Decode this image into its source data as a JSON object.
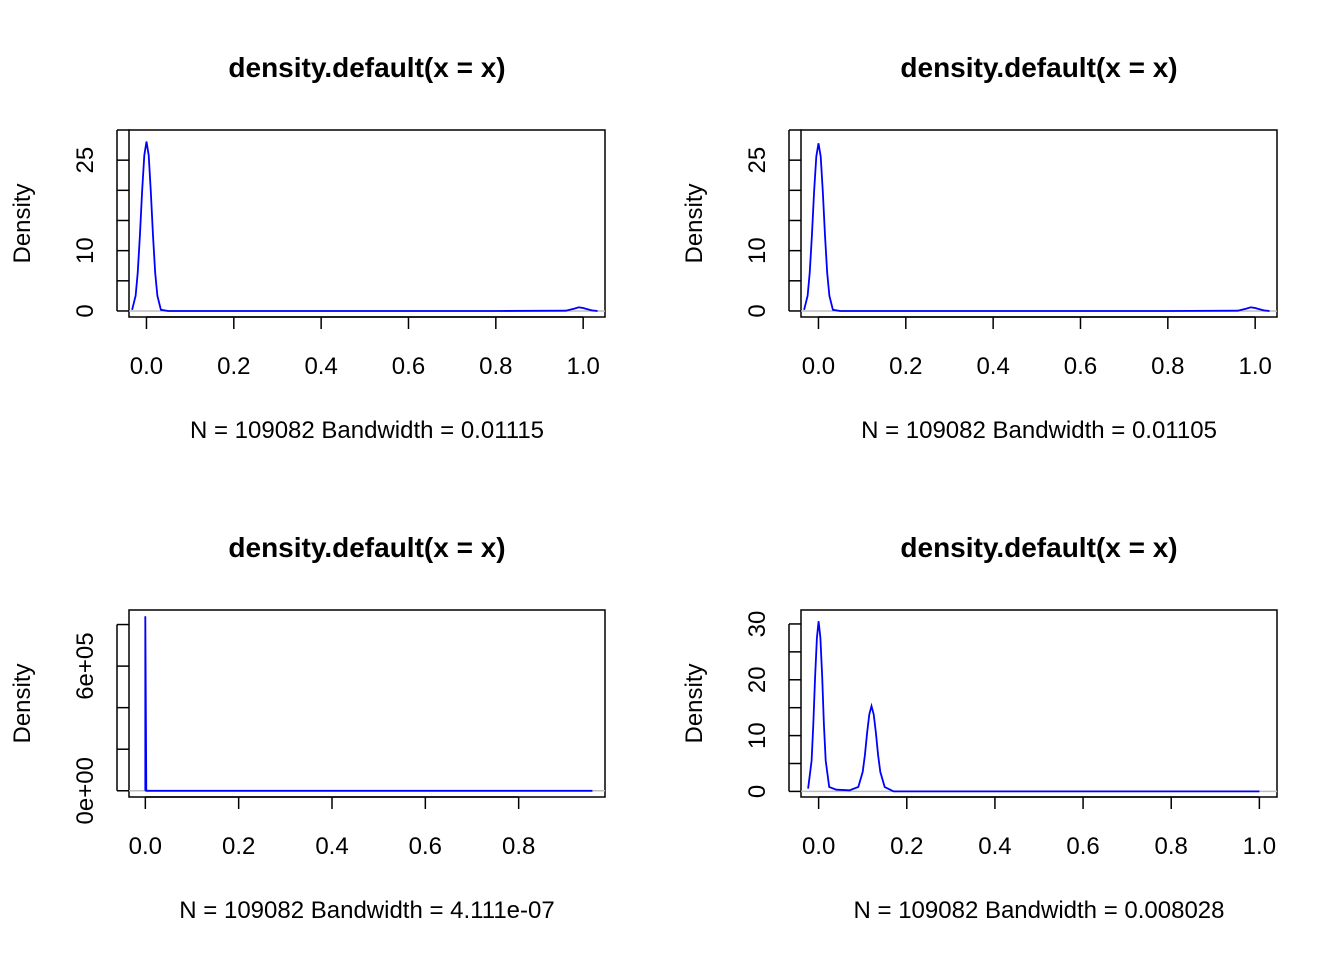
{
  "colors": {
    "curve": "#0000ff",
    "baseline": "#bebebe"
  },
  "chart_data": [
    {
      "type": "line",
      "title": "density.default(x = x)",
      "xlabel": "N = 109082   Bandwidth = 0.01115",
      "ylabel": "Density",
      "xlim": [
        -0.04,
        1.05
      ],
      "ylim": [
        -1.0,
        30.0
      ],
      "xticks": [
        0.0,
        0.2,
        0.4,
        0.6,
        0.8,
        1.0
      ],
      "xtick_labels": [
        "0.0",
        "0.2",
        "0.4",
        "0.6",
        "0.8",
        "1.0"
      ],
      "yticks": [
        0,
        5,
        10,
        15,
        20,
        25,
        30
      ],
      "ytick_labels": [
        "0",
        "",
        "10",
        "",
        "",
        "25",
        ""
      ],
      "series": [
        {
          "x": [
            -0.033,
            -0.025,
            -0.02,
            -0.015,
            -0.01,
            -0.005,
            0.0,
            0.005,
            0.01,
            0.015,
            0.02,
            0.025,
            0.033,
            0.05,
            0.2,
            0.5,
            0.8,
            0.96,
            0.98,
            0.99,
            1.0,
            1.01,
            1.02,
            1.033
          ],
          "y": [
            0.2,
            2.5,
            6.3,
            12.5,
            19.8,
            25.8,
            28.1,
            25.8,
            19.8,
            12.5,
            6.3,
            2.5,
            0.2,
            0.0,
            0.0,
            0.0,
            0.0,
            0.05,
            0.4,
            0.6,
            0.5,
            0.3,
            0.1,
            0.0
          ]
        }
      ]
    },
    {
      "type": "line",
      "title": "density.default(x = x)",
      "xlabel": "N = 109082   Bandwidth = 0.01105",
      "ylabel": "Density",
      "xlim": [
        -0.04,
        1.05
      ],
      "ylim": [
        -1.0,
        30.0
      ],
      "xticks": [
        0.0,
        0.2,
        0.4,
        0.6,
        0.8,
        1.0
      ],
      "xtick_labels": [
        "0.0",
        "0.2",
        "0.4",
        "0.6",
        "0.8",
        "1.0"
      ],
      "yticks": [
        0,
        5,
        10,
        15,
        20,
        25,
        30
      ],
      "ytick_labels": [
        "0",
        "",
        "10",
        "",
        "",
        "25",
        ""
      ],
      "series": [
        {
          "x": [
            -0.033,
            -0.025,
            -0.02,
            -0.015,
            -0.01,
            -0.005,
            0.0,
            0.005,
            0.01,
            0.015,
            0.02,
            0.025,
            0.033,
            0.05,
            0.2,
            0.5,
            0.8,
            0.96,
            0.98,
            0.99,
            1.0,
            1.01,
            1.02,
            1.033
          ],
          "y": [
            0.2,
            2.5,
            6.3,
            12.5,
            19.8,
            25.6,
            27.8,
            25.6,
            19.8,
            12.5,
            6.3,
            2.5,
            0.2,
            0.0,
            0.0,
            0.0,
            0.0,
            0.05,
            0.4,
            0.6,
            0.5,
            0.3,
            0.1,
            0.0
          ]
        }
      ]
    },
    {
      "type": "line",
      "title": "density.default(x = x)",
      "xlabel": "N = 109082   Bandwidth = 4.111e-07",
      "ylabel": "Density",
      "xlim": [
        -0.035,
        0.985
      ],
      "ylim": [
        -30000,
        870000
      ],
      "xticks": [
        0.0,
        0.2,
        0.4,
        0.6,
        0.8
      ],
      "xtick_labels": [
        "0.0",
        "0.2",
        "0.4",
        "0.6",
        "0.8"
      ],
      "yticks": [
        0,
        200000,
        400000,
        600000,
        800000
      ],
      "ytick_labels": [
        "0e+00",
        "",
        "",
        "6e+05",
        ""
      ],
      "series": [
        {
          "x": [
            0.0,
            0.0,
            0.0,
            0.002,
            0.1,
            0.5,
            0.958
          ],
          "y": [
            0,
            840000,
            840000,
            0,
            0,
            0,
            0
          ]
        }
      ]
    },
    {
      "type": "line",
      "title": "density.default(x = x)",
      "xlabel": "N = 109082   Bandwidth = 0.008028",
      "ylabel": "Density",
      "xlim": [
        -0.04,
        1.04
      ],
      "ylim": [
        -1.0,
        32.5
      ],
      "xticks": [
        0.0,
        0.2,
        0.4,
        0.6,
        0.8,
        1.0
      ],
      "xtick_labels": [
        "0.0",
        "0.2",
        "0.4",
        "0.6",
        "0.8",
        "1.0"
      ],
      "yticks": [
        0,
        5,
        10,
        15,
        20,
        25,
        30
      ],
      "ytick_labels": [
        "0",
        "",
        "10",
        "",
        "20",
        "",
        "30"
      ],
      "series": [
        {
          "x": [
            -0.024,
            -0.016,
            -0.012,
            -0.008,
            -0.004,
            0.0,
            0.004,
            0.008,
            0.012,
            0.016,
            0.024,
            0.04,
            0.07,
            0.09,
            0.1,
            0.105,
            0.11,
            0.115,
            0.12,
            0.125,
            0.13,
            0.135,
            0.14,
            0.15,
            0.17,
            0.3,
            0.6,
            1.0
          ],
          "y": [
            0.5,
            5.5,
            12.0,
            20.5,
            27.5,
            30.5,
            27.5,
            20.5,
            12.0,
            5.5,
            0.8,
            0.3,
            0.2,
            0.8,
            3.5,
            6.5,
            10.5,
            13.8,
            15.3,
            13.8,
            10.5,
            6.5,
            3.5,
            0.8,
            0.0,
            0.0,
            0.0,
            0.0
          ]
        }
      ]
    }
  ]
}
